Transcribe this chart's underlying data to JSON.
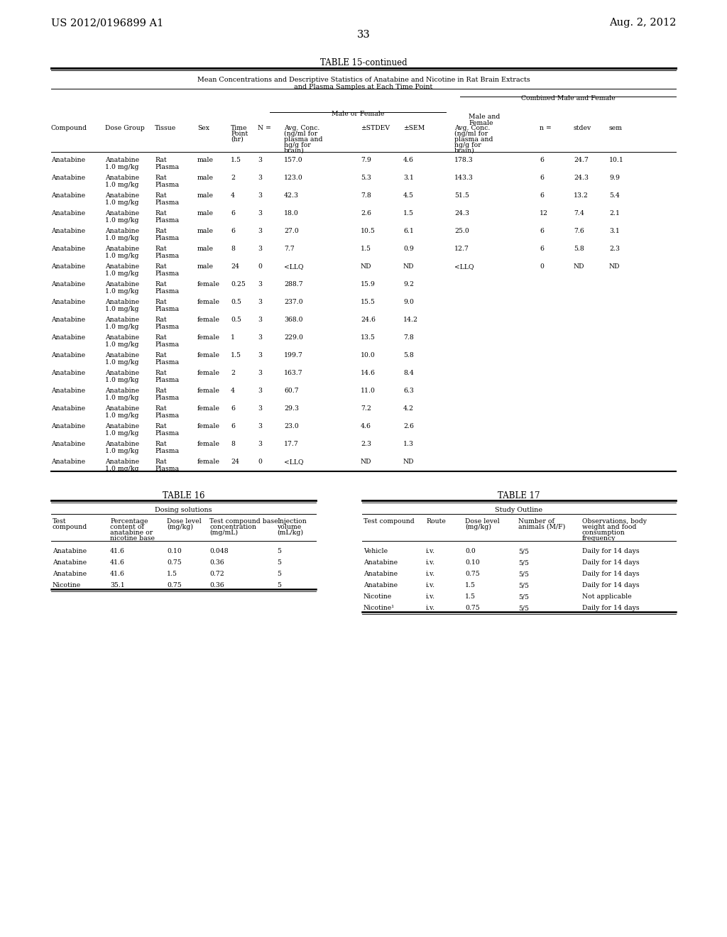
{
  "page_number": "33",
  "patent_left": "US 2012/0196899 A1",
  "patent_right": "Aug. 2, 2012",
  "table15_title": "TABLE 15-continued",
  "table15_subtitle1": "Mean Concentrations and Descriptive Statistics of Anatabine and Nicotine in Rat Brain Extracts",
  "table15_subtitle2": "and Plasma Samples at Each Time Point",
  "table15_data": [
    [
      "Anatabine",
      "Anatabine",
      "1.0 mg/kg",
      "Rat",
      "Plasma",
      "male",
      "1.5",
      "3",
      "157.0",
      "7.9",
      "4.6",
      "178.3",
      "6",
      "24.7",
      "10.1"
    ],
    [
      "Anatabine",
      "Anatabine",
      "1.0 mg/kg",
      "Rat",
      "Plasma",
      "male",
      "2",
      "3",
      "123.0",
      "5.3",
      "3.1",
      "143.3",
      "6",
      "24.3",
      "9.9"
    ],
    [
      "Anatabine",
      "Anatabine",
      "1.0 mg/kg",
      "Rat",
      "Plasma",
      "male",
      "4",
      "3",
      "42.3",
      "7.8",
      "4.5",
      "51.5",
      "6",
      "13.2",
      "5.4"
    ],
    [
      "Anatabine",
      "Anatabine",
      "1.0 mg/kg",
      "Rat",
      "Plasma",
      "male",
      "6",
      "3",
      "18.0",
      "2.6",
      "1.5",
      "24.3",
      "12",
      "7.4",
      "2.1"
    ],
    [
      "Anatabine",
      "Anatabine",
      "1.0 mg/kg",
      "Rat",
      "Plasma",
      "male",
      "6",
      "3",
      "27.0",
      "10.5",
      "6.1",
      "25.0",
      "6",
      "7.6",
      "3.1"
    ],
    [
      "Anatabine",
      "Anatabine",
      "1.0 mg/kg",
      "Rat",
      "Plasma",
      "male",
      "8",
      "3",
      "7.7",
      "1.5",
      "0.9",
      "12.7",
      "6",
      "5.8",
      "2.3"
    ],
    [
      "Anatabine",
      "Anatabine",
      "1.0 mg/kg",
      "Rat",
      "Plasma",
      "male",
      "24",
      "0",
      "<LLQ",
      "ND",
      "ND",
      "<LLQ",
      "0",
      "ND",
      "ND"
    ],
    [
      "Anatabine",
      "Anatabine",
      "1.0 mg/kg",
      "Rat",
      "Plasma",
      "female",
      "0.25",
      "3",
      "288.7",
      "15.9",
      "9.2",
      "",
      "",
      "",
      ""
    ],
    [
      "Anatabine",
      "Anatabine",
      "1.0 mg/kg",
      "Rat",
      "Plasma",
      "female",
      "0.5",
      "3",
      "237.0",
      "15.5",
      "9.0",
      "",
      "",
      "",
      ""
    ],
    [
      "Anatabine",
      "Anatabine",
      "1.0 mg/kg",
      "Rat",
      "Plasma",
      "female",
      "0.5",
      "3",
      "368.0",
      "24.6",
      "14.2",
      "",
      "",
      "",
      ""
    ],
    [
      "Anatabine",
      "Anatabine",
      "1.0 mg/kg",
      "Rat",
      "Plasma",
      "female",
      "1",
      "3",
      "229.0",
      "13.5",
      "7.8",
      "",
      "",
      "",
      ""
    ],
    [
      "Anatabine",
      "Anatabine",
      "1.0 mg/kg",
      "Rat",
      "Plasma",
      "female",
      "1.5",
      "3",
      "199.7",
      "10.0",
      "5.8",
      "",
      "",
      "",
      ""
    ],
    [
      "Anatabine",
      "Anatabine",
      "1.0 mg/kg",
      "Rat",
      "Plasma",
      "female",
      "2",
      "3",
      "163.7",
      "14.6",
      "8.4",
      "",
      "",
      "",
      ""
    ],
    [
      "Anatabine",
      "Anatabine",
      "1.0 mg/kg",
      "Rat",
      "Plasma",
      "female",
      "4",
      "3",
      "60.7",
      "11.0",
      "6.3",
      "",
      "",
      "",
      ""
    ],
    [
      "Anatabine",
      "Anatabine",
      "1.0 mg/kg",
      "Rat",
      "Plasma",
      "female",
      "6",
      "3",
      "29.3",
      "7.2",
      "4.2",
      "",
      "",
      "",
      ""
    ],
    [
      "Anatabine",
      "Anatabine",
      "1.0 mg/kg",
      "Rat",
      "Plasma",
      "female",
      "6",
      "3",
      "23.0",
      "4.6",
      "2.6",
      "",
      "",
      "",
      ""
    ],
    [
      "Anatabine",
      "Anatabine",
      "1.0 mg/kg",
      "Rat",
      "Plasma",
      "female",
      "8",
      "3",
      "17.7",
      "2.3",
      "1.3",
      "",
      "",
      "",
      ""
    ],
    [
      "Anatabine",
      "Anatabine",
      "1.0 mg/kg",
      "Rat",
      "Plasma",
      "female",
      "24",
      "0",
      "<LLQ",
      "ND",
      "ND",
      "",
      "",
      "",
      ""
    ]
  ],
  "table16_title": "TABLE 16",
  "table16_subtitle": "Dosing solutions",
  "table16_data": [
    [
      "Anatabine",
      "41.6",
      "0.10",
      "0.048",
      "5"
    ],
    [
      "Anatabine",
      "41.6",
      "0.75",
      "0.36",
      "5"
    ],
    [
      "Anatabine",
      "41.6",
      "1.5",
      "0.72",
      "5"
    ],
    [
      "Nicotine",
      "35.1",
      "0.75",
      "0.36",
      "5"
    ]
  ],
  "table17_title": "TABLE 17",
  "table17_subtitle": "Study Outline",
  "table17_data": [
    [
      "Vehicle",
      "i.v.",
      "0.0",
      "5/5",
      "Daily for 14 days"
    ],
    [
      "Anatabine",
      "i.v.",
      "0.10",
      "5/5",
      "Daily for 14 days"
    ],
    [
      "Anatabine",
      "i.v.",
      "0.75",
      "5/5",
      "Daily for 14 days"
    ],
    [
      "Anatabine",
      "i.v.",
      "1.5",
      "5/5",
      "Daily for 14 days"
    ],
    [
      "Nicotine",
      "i.v.",
      "1.5",
      "5/5",
      "Not applicable"
    ],
    [
      "Nicotine¹",
      "i.v.",
      "0.75",
      "5/5",
      "Daily for 14 days"
    ]
  ],
  "background_color": "#ffffff",
  "text_color": "#000000"
}
